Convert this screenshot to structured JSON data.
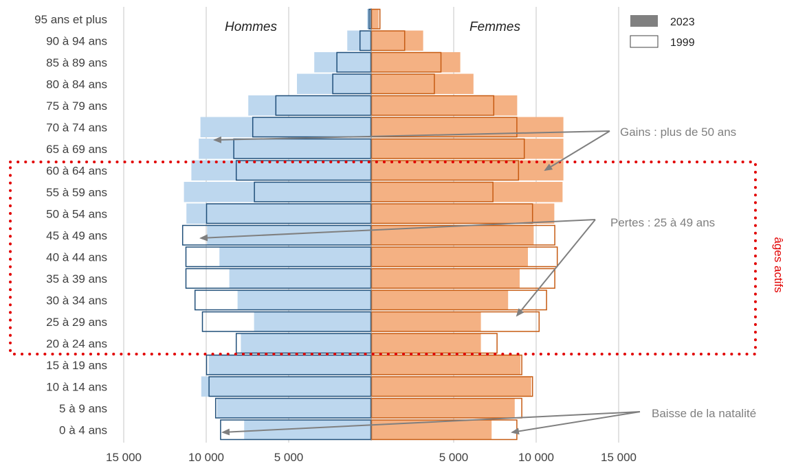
{
  "chart_data": {
    "type": "bar",
    "subtype": "population-pyramid",
    "age_groups": [
      "0 à 4 ans",
      "5 à 9 ans",
      "10 à 14 ans",
      "15 à 19 ans",
      "20 à 24 ans",
      "25 à 29 ans",
      "30 à 34 ans",
      "35 à 39 ans",
      "40 à 44 ans",
      "45 à 49 ans",
      "50 à 54 ans",
      "55 à 59 ans",
      "60 à 64 ans",
      "65 à 69 ans",
      "70 à 74 ans",
      "75 à 79 ans",
      "80 à 84 ans",
      "85 à 89 ans",
      "90 à 94 ans",
      "95 ans et plus"
    ],
    "panels": {
      "left": "Hommes",
      "right": "Femmes"
    },
    "x_ticks_left": [
      "15 000",
      "10 000",
      "5 000"
    ],
    "x_ticks_right": [
      "5 000",
      "10 000",
      "15 000"
    ],
    "xlim": [
      -15000,
      15000
    ],
    "grid": true,
    "legend": {
      "position": "top-right",
      "items": [
        {
          "label": "2023",
          "style": "filled",
          "color": "#808080"
        },
        {
          "label": "1999",
          "style": "outline",
          "color": "#ffffff"
        }
      ]
    },
    "colors": {
      "men_fill": "#bdd7ee",
      "men_outline": "#1f4e79",
      "women_fill": "#f4b183",
      "women_outline": "#c55a11",
      "arrow": "#7f7f7f",
      "box": "#e10000"
    },
    "series": [
      {
        "name": "2023",
        "sex": "Hommes",
        "style": "filled",
        "values": [
          7700,
          9350,
          10300,
          9850,
          7900,
          7100,
          8100,
          8600,
          9200,
          9950,
          11200,
          11350,
          10900,
          10450,
          10350,
          7450,
          4500,
          3450,
          1450,
          250
        ]
      },
      {
        "name": "2023",
        "sex": "Femmes",
        "style": "filled",
        "values": [
          7300,
          8700,
          9700,
          9050,
          6650,
          6650,
          8300,
          9000,
          9500,
          9850,
          11100,
          11600,
          11650,
          11650,
          11650,
          8850,
          6200,
          5400,
          3150,
          450
        ]
      },
      {
        "name": "1999",
        "sex": "Hommes",
        "style": "outline",
        "values": [
          9150,
          9450,
          9850,
          10000,
          8200,
          10250,
          10700,
          11250,
          11250,
          11450,
          10000,
          7100,
          8200,
          8350,
          7200,
          5800,
          2350,
          2100,
          700,
          150
        ]
      },
      {
        "name": "1999",
        "sex": "Femmes",
        "style": "outline",
        "values": [
          8850,
          9150,
          9800,
          9150,
          7650,
          10200,
          10650,
          11150,
          11300,
          11150,
          9800,
          7400,
          8950,
          9300,
          8850,
          7450,
          3850,
          4250,
          2050,
          550
        ]
      }
    ],
    "annotations": [
      "Gains : plus de 50 ans",
      "Pertes : 25 à 49 ans",
      "Baisse de la natalité"
    ],
    "highlight_box": {
      "label": "âges actifs",
      "from_group": "20 à 24 ans",
      "to_group": "60 à 64 ans"
    }
  }
}
